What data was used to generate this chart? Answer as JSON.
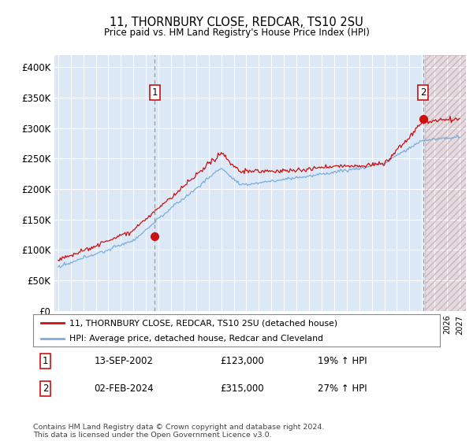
{
  "title": "11, THORNBURY CLOSE, REDCAR, TS10 2SU",
  "subtitle": "Price paid vs. HM Land Registry's House Price Index (HPI)",
  "legend_line1": "11, THORNBURY CLOSE, REDCAR, TS10 2SU (detached house)",
  "legend_line2": "HPI: Average price, detached house, Redcar and Cleveland",
  "annotation1_date": "13-SEP-2002",
  "annotation1_price": 123000,
  "annotation1_price_str": "£123,000",
  "annotation1_hpi": "19% ↑ HPI",
  "annotation2_date": "02-FEB-2024",
  "annotation2_price": 315000,
  "annotation2_price_str": "£315,000",
  "annotation2_hpi": "27% ↑ HPI",
  "footer": "Contains HM Land Registry data © Crown copyright and database right 2024.\nThis data is licensed under the Open Government Licence v3.0.",
  "hpi_color": "#7aaddc",
  "price_color": "#cc1111",
  "plot_bg": "#dce8f5",
  "annotation_box_color": "#cc1111",
  "ylim": [
    0,
    420000
  ],
  "yticks": [
    0,
    50000,
    100000,
    150000,
    200000,
    250000,
    300000,
    350000,
    400000
  ],
  "sale1_year": 2002.708,
  "sale2_year": 2024.083,
  "future_start": 2024.25,
  "year_start": 1995,
  "year_end": 2027,
  "xmin": 1994.7,
  "xmax": 2027.5
}
